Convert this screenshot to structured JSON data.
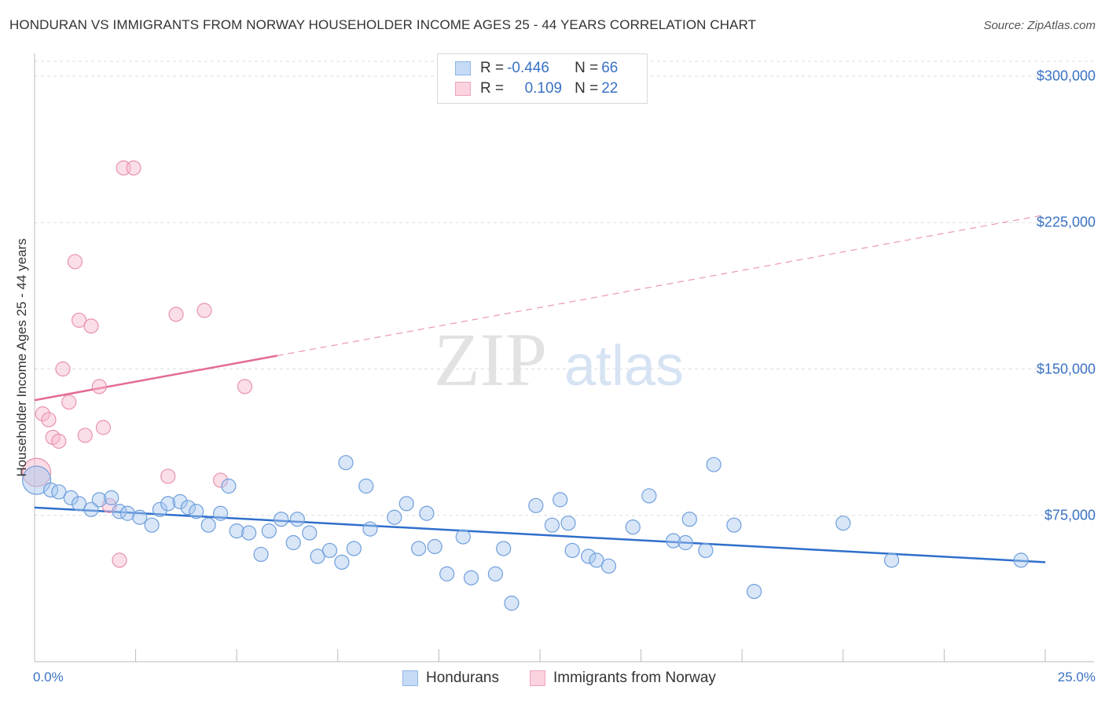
{
  "title": "HONDURAN VS IMMIGRANTS FROM NORWAY HOUSEHOLDER INCOME AGES 25 - 44 YEARS CORRELATION CHART",
  "source": "Source: ZipAtlas.com",
  "watermark": {
    "zip": "ZIP",
    "atlas": "atlas"
  },
  "legend": {
    "rows": [
      {
        "r_label": "R = ",
        "r_value": "-0.446",
        "n_label": "N = ",
        "n_value": "66",
        "color": "#a9c8ef"
      },
      {
        "r_label": "R = ",
        "r_value": "0.109",
        "n_label": "N = ",
        "n_value": "22",
        "color": "#f7b8cb"
      }
    ]
  },
  "bottom_legend": [
    {
      "label": "Hondurans",
      "color": "#a9c8ef"
    },
    {
      "label": "Immigrants from Norway",
      "color": "#f7b8cb"
    }
  ],
  "chart_data": {
    "type": "scatter",
    "title": "HONDURAN VS IMMIGRANTS FROM NORWAY HOUSEHOLDER INCOME AGES 25 - 44 YEARS CORRELATION CHART",
    "ylabel": "Householder Income Ages 25 - 44 years",
    "xlabel": "",
    "x_tick_labels": {
      "min": "0.0%",
      "max": "25.0%"
    },
    "y_tick_labels": [
      "$300,000",
      "$225,000",
      "$150,000",
      "$75,000"
    ],
    "y_tick_values": [
      300000,
      225000,
      150000,
      75000
    ],
    "xlim": [
      0,
      25
    ],
    "ylim": [
      0,
      310000
    ],
    "grid": true,
    "legend_position": "top-center",
    "series": [
      {
        "name": "Hondurans",
        "color": "#a9c8ef",
        "stroke": "#6f9fdc",
        "trend": {
          "x": [
            0,
            25
          ],
          "y": [
            79000,
            51000
          ],
          "color": "#2f6fcc",
          "dashed_from": null
        },
        "points": [
          {
            "x": 0.05,
            "y": 93000,
            "big": true
          },
          {
            "x": 0.4,
            "y": 88000
          },
          {
            "x": 0.6,
            "y": 87000
          },
          {
            "x": 0.9,
            "y": 84000
          },
          {
            "x": 1.1,
            "y": 81000
          },
          {
            "x": 1.4,
            "y": 78000
          },
          {
            "x": 1.6,
            "y": 83000
          },
          {
            "x": 1.9,
            "y": 84000
          },
          {
            "x": 2.1,
            "y": 77000
          },
          {
            "x": 2.3,
            "y": 76000
          },
          {
            "x": 2.6,
            "y": 74000
          },
          {
            "x": 2.9,
            "y": 70000
          },
          {
            "x": 3.1,
            "y": 78000
          },
          {
            "x": 3.3,
            "y": 81000
          },
          {
            "x": 3.6,
            "y": 82000
          },
          {
            "x": 3.8,
            "y": 79000
          },
          {
            "x": 4.0,
            "y": 77000
          },
          {
            "x": 4.3,
            "y": 70000
          },
          {
            "x": 4.6,
            "y": 76000
          },
          {
            "x": 4.8,
            "y": 90000
          },
          {
            "x": 5.0,
            "y": 67000
          },
          {
            "x": 5.3,
            "y": 66000
          },
          {
            "x": 5.6,
            "y": 55000
          },
          {
            "x": 5.8,
            "y": 67000
          },
          {
            "x": 6.1,
            "y": 73000
          },
          {
            "x": 6.4,
            "y": 61000
          },
          {
            "x": 6.5,
            "y": 73000
          },
          {
            "x": 6.8,
            "y": 66000
          },
          {
            "x": 7.0,
            "y": 54000
          },
          {
            "x": 7.3,
            "y": 57000
          },
          {
            "x": 7.6,
            "y": 51000
          },
          {
            "x": 7.7,
            "y": 102000
          },
          {
            "x": 7.9,
            "y": 58000
          },
          {
            "x": 8.2,
            "y": 90000
          },
          {
            "x": 8.3,
            "y": 68000
          },
          {
            "x": 8.9,
            "y": 74000
          },
          {
            "x": 9.2,
            "y": 81000
          },
          {
            "x": 9.5,
            "y": 58000
          },
          {
            "x": 9.7,
            "y": 76000
          },
          {
            "x": 9.9,
            "y": 59000
          },
          {
            "x": 10.2,
            "y": 45000
          },
          {
            "x": 10.6,
            "y": 64000
          },
          {
            "x": 10.8,
            "y": 43000
          },
          {
            "x": 11.4,
            "y": 45000
          },
          {
            "x": 11.6,
            "y": 58000
          },
          {
            "x": 11.8,
            "y": 30000
          },
          {
            "x": 12.4,
            "y": 80000
          },
          {
            "x": 12.8,
            "y": 70000
          },
          {
            "x": 13.0,
            "y": 83000
          },
          {
            "x": 13.2,
            "y": 71000
          },
          {
            "x": 13.3,
            "y": 57000
          },
          {
            "x": 13.7,
            "y": 54000
          },
          {
            "x": 13.9,
            "y": 52000
          },
          {
            "x": 14.2,
            "y": 49000
          },
          {
            "x": 14.8,
            "y": 69000
          },
          {
            "x": 15.2,
            "y": 85000
          },
          {
            "x": 15.8,
            "y": 62000
          },
          {
            "x": 16.1,
            "y": 61000
          },
          {
            "x": 16.2,
            "y": 73000
          },
          {
            "x": 16.6,
            "y": 57000
          },
          {
            "x": 16.8,
            "y": 101000
          },
          {
            "x": 17.3,
            "y": 70000
          },
          {
            "x": 17.8,
            "y": 36000
          },
          {
            "x": 20.0,
            "y": 71000
          },
          {
            "x": 21.2,
            "y": 52000
          },
          {
            "x": 24.4,
            "y": 52000
          }
        ]
      },
      {
        "name": "Immigrants from Norway",
        "color": "#f7b8cb",
        "stroke": "#e892ad",
        "trend": {
          "x": [
            0,
            25
          ],
          "y": [
            134000,
            229000
          ],
          "color": "#e36b92",
          "solid_until": 6.0
        },
        "points": [
          {
            "x": 0.05,
            "y": 97000,
            "big": true
          },
          {
            "x": 0.2,
            "y": 127000
          },
          {
            "x": 0.35,
            "y": 124000
          },
          {
            "x": 0.45,
            "y": 115000
          },
          {
            "x": 0.6,
            "y": 113000
          },
          {
            "x": 0.7,
            "y": 150000
          },
          {
            "x": 0.85,
            "y": 133000
          },
          {
            "x": 1.0,
            "y": 205000
          },
          {
            "x": 1.1,
            "y": 175000
          },
          {
            "x": 1.25,
            "y": 116000
          },
          {
            "x": 1.4,
            "y": 172000
          },
          {
            "x": 1.6,
            "y": 141000
          },
          {
            "x": 1.7,
            "y": 120000
          },
          {
            "x": 1.85,
            "y": 80000
          },
          {
            "x": 2.1,
            "y": 52000
          },
          {
            "x": 2.2,
            "y": 253000
          },
          {
            "x": 2.45,
            "y": 253000
          },
          {
            "x": 3.3,
            "y": 95000
          },
          {
            "x": 3.5,
            "y": 178000
          },
          {
            "x": 4.2,
            "y": 180000
          },
          {
            "x": 4.6,
            "y": 93000
          },
          {
            "x": 5.2,
            "y": 141000
          }
        ]
      }
    ]
  }
}
